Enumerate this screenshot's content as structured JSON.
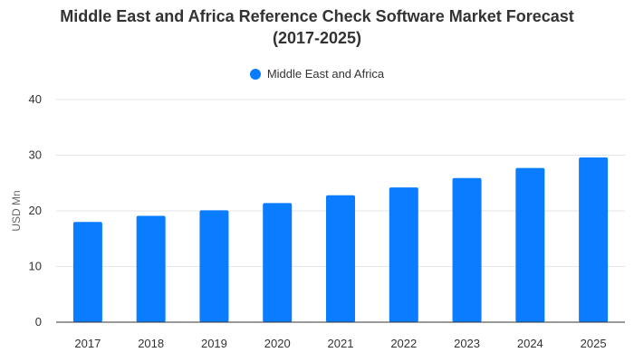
{
  "chart_data": {
    "type": "bar",
    "title_lines": [
      "Middle East and Africa Reference Check Software Market Forecast",
      "(2017-2025)"
    ],
    "categories": [
      "2017",
      "2018",
      "2019",
      "2020",
      "2021",
      "2022",
      "2023",
      "2024",
      "2025"
    ],
    "series": [
      {
        "name": "Middle East and Africa",
        "color": "#0a7cff",
        "values": [
          18.0,
          19.1,
          20.1,
          21.4,
          22.8,
          24.2,
          25.9,
          27.7,
          29.6
        ]
      }
    ],
    "xlabel": "",
    "ylabel": "USD Mn",
    "ylim": [
      0,
      40
    ],
    "yticks": [
      0,
      10,
      20,
      30,
      40
    ],
    "grid": true,
    "legend_position": "top-center"
  }
}
